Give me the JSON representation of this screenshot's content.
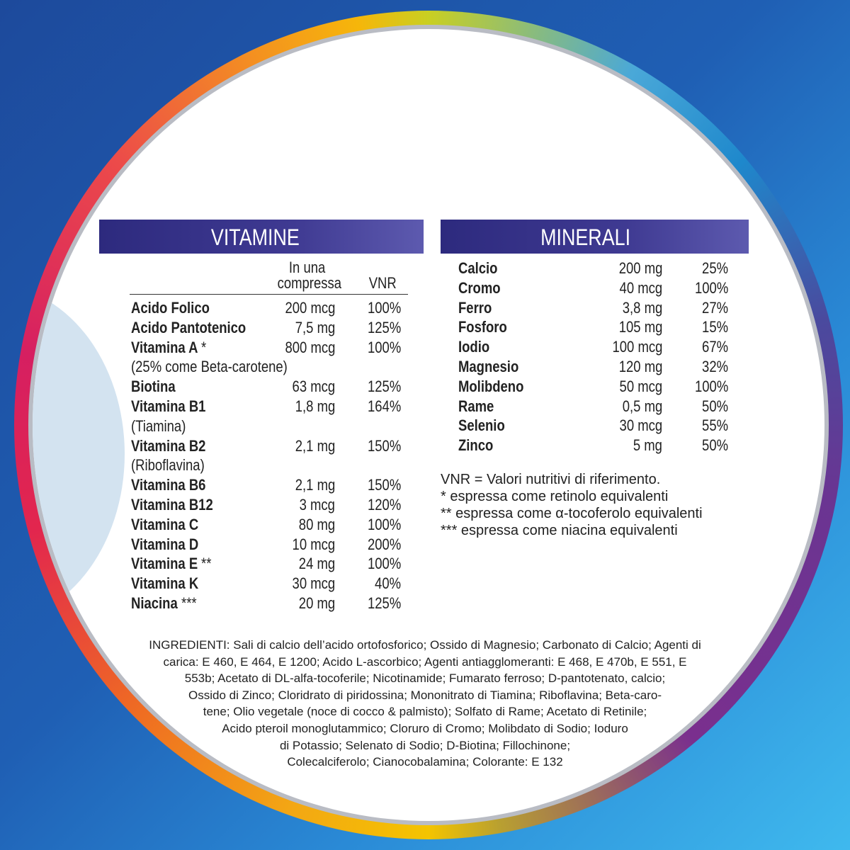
{
  "vitamins": {
    "title": "VITAMINE",
    "header": {
      "amount_line1": "In una",
      "amount_line2": "compressa",
      "vnr": "VNR"
    },
    "rows": [
      {
        "name": "Acido Folico",
        "amount": "200 mcg",
        "vnr": "100%"
      },
      {
        "name": "Acido Pantotenico",
        "amount": "7,5 mg",
        "vnr": "125%"
      },
      {
        "name": "Vitamina A",
        "mark": "*",
        "amount": "800 mcg",
        "vnr": "100%",
        "note": "(25% come Beta-carotene)"
      },
      {
        "name": "Biotina",
        "amount": "63 mcg",
        "vnr": "125%"
      },
      {
        "name": "Vitamina B1",
        "amount": "1,8 mg",
        "vnr": "164%",
        "note": "(Tiamina)"
      },
      {
        "name": "Vitamina B2",
        "amount": "2,1 mg",
        "vnr": "150%",
        "note": "(Riboflavina)"
      },
      {
        "name": "Vitamina B6",
        "amount": "2,1 mg",
        "vnr": "150%"
      },
      {
        "name": "Vitamina B12",
        "amount": "3 mcg",
        "vnr": "120%"
      },
      {
        "name": "Vitamina C",
        "amount": "80 mg",
        "vnr": "100%"
      },
      {
        "name": "Vitamina D",
        "amount": "10 mcg",
        "vnr": "200%"
      },
      {
        "name": "Vitamina E",
        "mark": "**",
        "amount": "24 mg",
        "vnr": "100%"
      },
      {
        "name": "Vitamina K",
        "amount": "30 mcg",
        "vnr": "40%"
      },
      {
        "name": "Niacina",
        "mark": "***",
        "amount": "20 mg",
        "vnr": "125%"
      }
    ]
  },
  "minerals": {
    "title": "MINERALI",
    "rows": [
      {
        "name": "Calcio",
        "amount": "200 mg",
        "vnr": "25%"
      },
      {
        "name": "Cromo",
        "amount": "40 mcg",
        "vnr": "100%"
      },
      {
        "name": "Ferro",
        "amount": "3,8 mg",
        "vnr": "27%"
      },
      {
        "name": "Fosforo",
        "amount": "105 mg",
        "vnr": "15%"
      },
      {
        "name": "Iodio",
        "amount": "100 mcg",
        "vnr": "67%"
      },
      {
        "name": "Magnesio",
        "amount": "120 mg",
        "vnr": "32%"
      },
      {
        "name": "Molibdeno",
        "amount": "50 mcg",
        "vnr": "100%"
      },
      {
        "name": "Rame",
        "amount": "0,5 mg",
        "vnr": "50%"
      },
      {
        "name": "Selenio",
        "amount": "30 mcg",
        "vnr": "55%"
      },
      {
        "name": "Zinco",
        "amount": "5 mg",
        "vnr": "50%"
      }
    ]
  },
  "footnotes": [
    "VNR = Valori nutritivi di riferimento.",
    "* espressa come retinolo equivalenti",
    "** espressa come α-tocoferolo equivalenti",
    "*** espressa come niacina equivalenti"
  ],
  "ingredients": [
    "INGREDIENTI:  Sali di calcio dell’acido ortofosforico; Ossido di Magnesio; Carbonato di Calcio; Agenti di",
    "carica: E 460, E 464, E 1200; Acido L-ascorbico; Agenti antiagglomeranti: E 468, E 470b, E 551, E",
    "553b; Acetato di DL-alfa-tocoferile; Nicotinamide; Fumarato ferroso; D-pantotenato, calcio;",
    "Ossido di Zinco; Cloridrato di piridossina; Mononitrato di Tiamina; Riboflavina; Beta-caro-",
    "tene; Olio vegetale (noce di cocco & palmisto); Solfato di Rame; Acetato di Retinile;",
    "Acido pteroil monoglutammico; Cloruro di Cromo; Molibdato di Sodio; Ioduro",
    "di Potassio; Selenato di Sodio; D-Biotina; Fillochinone;",
    "Colecalciferolo; Cianocobalamina; Colorante: E 132"
  ]
}
